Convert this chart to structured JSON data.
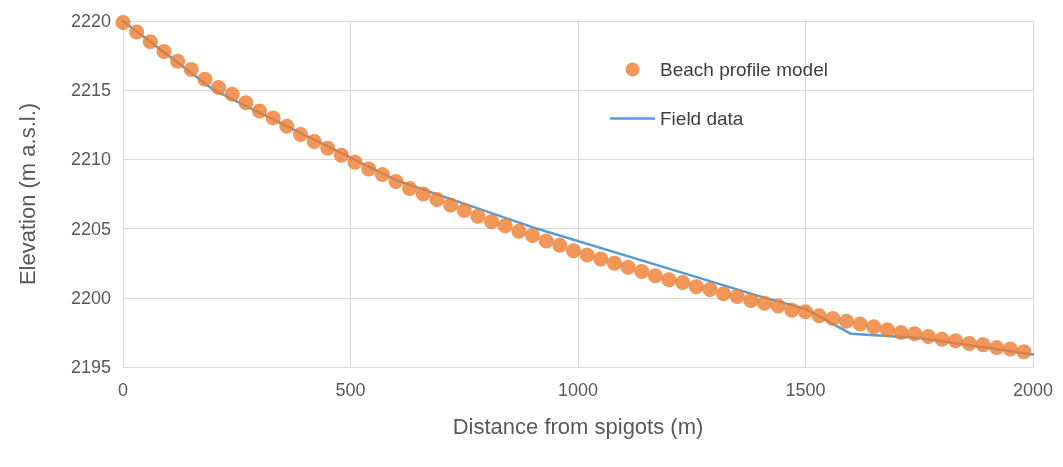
{
  "chart_data": {
    "type": "scatter",
    "xlabel": "Distance from spigots (m)",
    "ylabel": "Elevation (m a.s.l.)",
    "xlim": [
      0,
      2000
    ],
    "xticks": [
      0,
      500,
      1000,
      1500,
      2000
    ],
    "ylim": [
      2195,
      2220
    ],
    "yticks": [
      2195,
      2200,
      2205,
      2210,
      2215,
      2220
    ],
    "grid": true,
    "legend": "top right",
    "series": [
      {
        "name": "Beach profile model",
        "type": "scatter",
        "marker": "circle",
        "color": "#ed7d31",
        "x": [
          0,
          30,
          60,
          90,
          120,
          150,
          180,
          210,
          240,
          270,
          300,
          330,
          360,
          390,
          420,
          450,
          480,
          510,
          540,
          570,
          600,
          630,
          660,
          690,
          720,
          750,
          780,
          810,
          840,
          870,
          900,
          930,
          960,
          990,
          1020,
          1050,
          1080,
          1110,
          1140,
          1170,
          1200,
          1230,
          1260,
          1290,
          1320,
          1350,
          1380,
          1410,
          1440,
          1470,
          1500,
          1530,
          1560,
          1590,
          1620,
          1650,
          1680,
          1710,
          1740,
          1770,
          1800,
          1830,
          1860,
          1890,
          1920,
          1950,
          1980
        ],
        "values": [
          2219.9,
          2219.2,
          2218.5,
          2217.8,
          2217.1,
          2216.5,
          2215.8,
          2215.2,
          2214.7,
          2214.1,
          2213.5,
          2213.0,
          2212.4,
          2211.8,
          2211.3,
          2210.8,
          2210.3,
          2209.8,
          2209.3,
          2208.9,
          2208.4,
          2207.9,
          2207.5,
          2207.1,
          2206.7,
          2206.3,
          2205.9,
          2205.5,
          2205.2,
          2204.8,
          2204.5,
          2204.1,
          2203.8,
          2203.4,
          2203.1,
          2202.8,
          2202.5,
          2202.2,
          2201.9,
          2201.6,
          2201.3,
          2201.1,
          2200.8,
          2200.6,
          2200.3,
          2200.1,
          2199.8,
          2199.6,
          2199.4,
          2199.1,
          2199.0,
          2198.7,
          2198.5,
          2198.3,
          2198.1,
          2197.9,
          2197.7,
          2197.5,
          2197.4,
          2197.2,
          2197.0,
          2196.9,
          2196.7,
          2196.6,
          2196.4,
          2196.3,
          2196.1
        ]
      },
      {
        "name": "Field data",
        "type": "line",
        "marker": "none",
        "line_style": "solid",
        "color": "#5b9bd5",
        "x": [
          0,
          200,
          600,
          900,
          1400,
          1500,
          1600,
          1750,
          2000
        ],
        "values": [
          2220,
          2215,
          2208.5,
          2205.1,
          2200.1,
          2199.2,
          2197.4,
          2197.1,
          2195.9
        ]
      }
    ]
  }
}
